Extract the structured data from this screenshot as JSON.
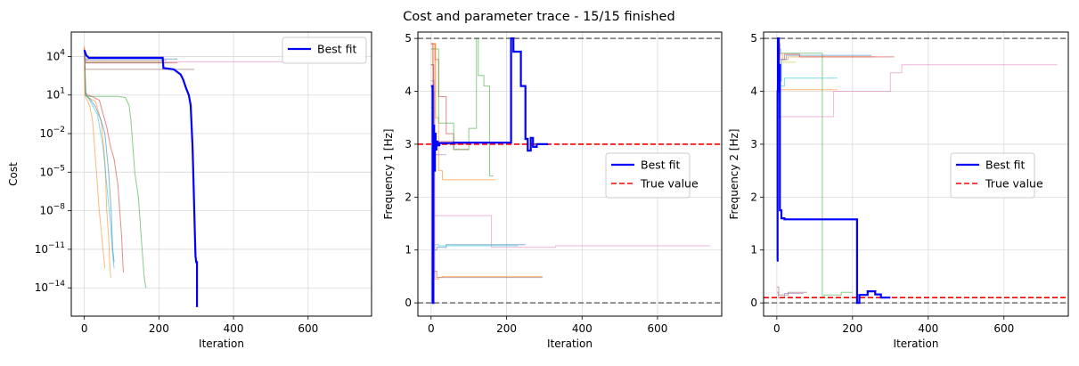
{
  "figure": {
    "title": "Cost and parameter trace - 15/15 finished"
  },
  "chart_data": [
    {
      "type": "line",
      "name": "cost-panel",
      "xlabel": "Iteration",
      "ylabel": "Cost",
      "yscale": "log",
      "xlim": [
        -35,
        770
      ],
      "ylim_exp": [
        -16.2,
        5.9
      ],
      "xticks": [
        0,
        200,
        400,
        600
      ],
      "xtick_labels": [
        "0",
        "200",
        "400",
        "600"
      ],
      "yticks_exp": [
        4,
        1,
        -2,
        -5,
        -8,
        -11,
        -14
      ],
      "ytick_labels": [
        "10^4",
        "10^1",
        "10^-2",
        "10^-5",
        "10^-8",
        "10^-11",
        "10^-14"
      ],
      "grid": true,
      "legend": {
        "placement": "top-right",
        "entries": [
          {
            "label": "Best fit",
            "color": "#0000ff",
            "style": "solid"
          }
        ]
      },
      "best_fit": {
        "name": "Best fit",
        "color": "#0000ff",
        "x": [
          0,
          5,
          12,
          210,
          212,
          240,
          258,
          265,
          272,
          280,
          285,
          290,
          293,
          296,
          298,
          300,
          302,
          302
        ],
        "y_exp": [
          4.5,
          4.1,
          3.9,
          3.9,
          3.1,
          3.0,
          2.6,
          2.2,
          1.6,
          1.0,
          0.2,
          -3.0,
          -6.0,
          -9.5,
          -11.5,
          -12.0,
          -12.0,
          -15.5
        ]
      },
      "traces": [
        {
          "color": "#ff7f0e",
          "x": [
            0,
            2,
            5,
            10,
            30,
            45,
            55,
            60,
            65,
            68,
            70,
            72
          ],
          "y_exp": [
            4.7,
            1.5,
            0.9,
            0.8,
            0.5,
            -1.0,
            -4.0,
            -8.0,
            -10.0,
            -12.0,
            -13.0,
            -13.2
          ]
        },
        {
          "color": "#d62728",
          "x": [
            0,
            4,
            8,
            20,
            40,
            60,
            70,
            80,
            90,
            95,
            100,
            103,
            105
          ],
          "y_exp": [
            4.6,
            1.2,
            1.0,
            0.9,
            0.6,
            -1.5,
            -3.0,
            -4.0,
            -6.0,
            -8.0,
            -10.0,
            -12.0,
            -12.8
          ]
        },
        {
          "color": "#1f77b4",
          "x": [
            0,
            3,
            8,
            15,
            30,
            45,
            55,
            65,
            72,
            76,
            80
          ],
          "y_exp": [
            4.5,
            1.0,
            0.9,
            0.7,
            0.1,
            -1.0,
            -2.0,
            -5.0,
            -8.0,
            -11.0,
            -12.0
          ]
        },
        {
          "color": "#2ca02c",
          "x": [
            0,
            3,
            10,
            30,
            60,
            90,
            110,
            120,
            125,
            130,
            135,
            140,
            145,
            150,
            155,
            160,
            165
          ],
          "y_exp": [
            4.4,
            1.0,
            0.9,
            0.9,
            0.9,
            0.9,
            0.8,
            0.2,
            -1.0,
            -3.0,
            -5.0,
            -6.0,
            -7.0,
            -9.0,
            -11.0,
            -13.0,
            -14.0
          ]
        },
        {
          "color": "#17becf",
          "x": [
            0,
            4,
            10,
            20,
            35,
            50,
            60,
            70,
            75,
            80
          ],
          "y_exp": [
            4.3,
            1.0,
            0.8,
            0.3,
            -0.5,
            -3.0,
            -6.0,
            -9.0,
            -11.0,
            -12.5
          ]
        },
        {
          "color": "#ff7f0e",
          "x": [
            0,
            2,
            8,
            15,
            22,
            30,
            40,
            50,
            55
          ],
          "y_exp": [
            4.8,
            0.9,
            0.6,
            0.1,
            -1.0,
            -4.0,
            -8.0,
            -11.0,
            -12.5
          ]
        },
        {
          "color": "#e377c2",
          "x": [
            0,
            5,
            740
          ],
          "y_exp": [
            4.5,
            3.6,
            3.6
          ]
        },
        {
          "color": "#8c564b",
          "x": [
            0,
            2,
            295
          ],
          "y_exp": [
            4.2,
            3.0,
            3.0
          ]
        },
        {
          "color": "#d62728",
          "x": [
            0,
            3,
            250
          ],
          "y_exp": [
            4.0,
            3.5,
            3.5
          ]
        },
        {
          "color": "#1f77b4",
          "x": [
            0,
            2,
            250
          ],
          "y_exp": [
            4.5,
            3.8,
            3.8
          ]
        },
        {
          "color": "#9467bd",
          "x": [
            0,
            2,
            220
          ],
          "y_exp": [
            4.3,
            3.7,
            3.7
          ]
        },
        {
          "color": "#bcbd22",
          "x": [
            0,
            2,
            210
          ],
          "y_exp": [
            4.4,
            3.6,
            3.6
          ]
        },
        {
          "color": "#7f7f7f",
          "x": [
            0,
            2,
            230
          ],
          "y_exp": [
            4.1,
            3.5,
            3.5
          ]
        }
      ]
    },
    {
      "type": "line",
      "name": "frequency-1-panel",
      "xlabel": "Iteration",
      "ylabel": "Frequency 1 [Hz]",
      "xlim": [
        -35,
        770
      ],
      "ylim": [
        -0.25,
        5.12
      ],
      "xticks": [
        0,
        200,
        400,
        600
      ],
      "xtick_labels": [
        "0",
        "200",
        "400",
        "600"
      ],
      "yticks": [
        0,
        1,
        2,
        3,
        4,
        5
      ],
      "ytick_labels": [
        "0",
        "1",
        "2",
        "3",
        "4",
        "5"
      ],
      "grid": true,
      "bounds": [
        0,
        5
      ],
      "true_value": 3.0,
      "legend": {
        "placement": "center-right",
        "entries": [
          {
            "label": "Best fit",
            "color": "#0000ff",
            "style": "solid"
          },
          {
            "label": "True value",
            "color": "#ff0000",
            "style": "dashed"
          }
        ]
      },
      "best_fit": {
        "name": "Best fit",
        "color": "#0000ff",
        "x": [
          0,
          4,
          4,
          6,
          6,
          8,
          8,
          10,
          10,
          12,
          12,
          14,
          14,
          17,
          17,
          22,
          22,
          60,
          60,
          212,
          212,
          218,
          218,
          238,
          238,
          250,
          250,
          256,
          256,
          264,
          264,
          270,
          270,
          280,
          280,
          310
        ],
        "y": [
          4.1,
          4.1,
          0.0,
          0.0,
          3.35,
          3.35,
          2.5,
          2.5,
          3.2,
          3.2,
          2.9,
          2.9,
          3.05,
          3.05,
          2.98,
          2.98,
          3.02,
          3.02,
          3.03,
          3.03,
          5.0,
          5.0,
          4.75,
          4.75,
          4.1,
          4.1,
          3.1,
          3.1,
          2.88,
          2.88,
          3.12,
          3.12,
          2.95,
          2.95,
          3.0,
          3.0
        ]
      },
      "traces": [
        {
          "color": "#ff7f0e",
          "x": [
            0,
            5,
            5,
            12,
            12,
            20,
            20,
            30,
            30,
            170
          ],
          "y": [
            4.5,
            4.5,
            4.9,
            4.9,
            3.5,
            3.5,
            2.5,
            2.5,
            2.33,
            2.33
          ]
        },
        {
          "color": "#d62728",
          "x": [
            0,
            10,
            10,
            20,
            20,
            40,
            40,
            60,
            60,
            100
          ],
          "y": [
            4.9,
            4.9,
            4.6,
            4.6,
            3.9,
            3.9,
            3.2,
            3.2,
            2.9,
            2.9
          ]
        },
        {
          "color": "#2ca02c",
          "x": [
            0,
            20,
            20,
            60,
            60,
            100,
            100,
            120,
            120,
            125,
            125,
            140,
            140,
            155,
            155,
            165
          ],
          "y": [
            4.8,
            4.8,
            3.4,
            3.4,
            2.9,
            2.9,
            3.3,
            3.3,
            5.0,
            5.0,
            4.3,
            4.3,
            4.1,
            4.1,
            2.4,
            2.4
          ]
        },
        {
          "color": "#1f77b4",
          "x": [
            0,
            8,
            8,
            15,
            15,
            40,
            40,
            250
          ],
          "y": [
            4.0,
            4.0,
            1.0,
            1.0,
            1.05,
            1.05,
            1.1,
            1.1
          ]
        },
        {
          "color": "#17becf",
          "x": [
            0,
            6,
            6,
            20,
            20,
            230
          ],
          "y": [
            3.7,
            3.7,
            1.1,
            1.1,
            1.08,
            1.08
          ]
        },
        {
          "color": "#e377c2",
          "x": [
            0,
            6,
            6,
            160,
            160,
            330,
            330,
            740
          ],
          "y": [
            4.5,
            4.5,
            1.65,
            1.65,
            1.05,
            1.05,
            1.08,
            1.08
          ]
        },
        {
          "color": "#8c564b",
          "x": [
            0,
            7,
            7,
            15,
            15,
            295
          ],
          "y": [
            4.5,
            4.5,
            0.6,
            0.6,
            0.48,
            0.48
          ]
        },
        {
          "color": "#ff7f0e",
          "x": [
            0,
            10,
            10,
            20,
            20,
            30,
            30,
            295
          ],
          "y": [
            4.9,
            4.9,
            0.45,
            0.45,
            0.48,
            0.48,
            0.5,
            0.5
          ]
        },
        {
          "color": "#d62728",
          "x": [
            0,
            5,
            5,
            60,
            60,
            100
          ],
          "y": [
            4.9,
            4.9,
            3.05,
            3.05,
            3.0,
            3.0
          ]
        },
        {
          "color": "#9467bd",
          "x": [
            0,
            8,
            8,
            40
          ],
          "y": [
            4.2,
            4.2,
            2.8,
            2.8
          ]
        }
      ]
    },
    {
      "type": "line",
      "name": "frequency-2-panel",
      "xlabel": "Iteration",
      "ylabel": "Frequency 2 [Hz]",
      "xlim": [
        -35,
        770
      ],
      "ylim": [
        -0.25,
        5.12
      ],
      "xticks": [
        0,
        200,
        400,
        600
      ],
      "xtick_labels": [
        "0",
        "200",
        "400",
        "600"
      ],
      "yticks": [
        0,
        1,
        2,
        3,
        4,
        5
      ],
      "ytick_labels": [
        "0",
        "1",
        "2",
        "3",
        "4",
        "5"
      ],
      "grid": true,
      "bounds": [
        0,
        5
      ],
      "true_value": 0.1,
      "legend": {
        "placement": "center-right",
        "entries": [
          {
            "label": "Best fit",
            "color": "#0000ff",
            "style": "solid"
          },
          {
            "label": "True value",
            "color": "#ff0000",
            "style": "dashed"
          }
        ]
      },
      "best_fit": {
        "name": "Best fit",
        "color": "#0000ff",
        "x": [
          0,
          2,
          2,
          3,
          3,
          5,
          5,
          8,
          8,
          12,
          12,
          20,
          20,
          212,
          212,
          218,
          218,
          240,
          240,
          260,
          260,
          275,
          275,
          300
        ],
        "y": [
          0.8,
          0.8,
          4.0,
          4.0,
          5.0,
          5.0,
          4.5,
          4.5,
          1.75,
          1.75,
          1.6,
          1.6,
          1.58,
          1.58,
          0.0,
          0.0,
          0.15,
          0.15,
          0.22,
          0.22,
          0.16,
          0.16,
          0.1,
          0.1
        ]
      },
      "traces": [
        {
          "color": "#ff7f0e",
          "x": [
            0,
            5,
            5,
            15,
            15,
            30,
            30,
            260
          ],
          "y": [
            4.3,
            4.3,
            4.7,
            4.7,
            4.6,
            4.6,
            4.65,
            4.65
          ]
        },
        {
          "color": "#2ca02c",
          "x": [
            0,
            10,
            10,
            120,
            120,
            125,
            125,
            170,
            170,
            200
          ],
          "y": [
            4.8,
            4.8,
            4.72,
            4.72,
            0.1,
            0.1,
            0.15,
            0.15,
            0.2,
            0.2
          ]
        },
        {
          "color": "#d62728",
          "x": [
            0,
            8,
            8,
            20,
            20,
            60,
            60,
            310
          ],
          "y": [
            4.9,
            4.9,
            4.6,
            4.6,
            4.7,
            4.7,
            4.65,
            4.65
          ]
        },
        {
          "color": "#1f77b4",
          "x": [
            0,
            6,
            6,
            12,
            12,
            25,
            25,
            250
          ],
          "y": [
            3.5,
            3.5,
            4.2,
            4.2,
            4.6,
            4.6,
            4.68,
            4.68
          ]
        },
        {
          "color": "#17becf",
          "x": [
            0,
            5,
            5,
            20,
            20,
            160
          ],
          "y": [
            3.8,
            3.8,
            4.1,
            4.1,
            4.25,
            4.25
          ]
        },
        {
          "color": "#ff7f0e",
          "x": [
            0,
            4,
            4,
            160
          ],
          "y": [
            3.9,
            3.9,
            4.03,
            4.03
          ]
        },
        {
          "color": "#bcbd22",
          "x": [
            0,
            4,
            4,
            50
          ],
          "y": [
            4.5,
            4.5,
            4.55,
            4.55
          ]
        },
        {
          "color": "#e377c2",
          "x": [
            0,
            6,
            6,
            150,
            150,
            300,
            300,
            330,
            330,
            740
          ],
          "y": [
            3.5,
            3.5,
            3.52,
            3.52,
            4.0,
            4.0,
            4.35,
            4.35,
            4.5,
            4.5
          ]
        },
        {
          "color": "#8c564b",
          "x": [
            0,
            5,
            5,
            30,
            30,
            80
          ],
          "y": [
            0.3,
            0.3,
            0.15,
            0.15,
            0.2,
            0.2
          ]
        },
        {
          "color": "#9467bd",
          "x": [
            0,
            4,
            4,
            20,
            20,
            70
          ],
          "y": [
            0.2,
            0.2,
            0.1,
            0.1,
            0.18,
            0.18
          ]
        }
      ]
    }
  ]
}
